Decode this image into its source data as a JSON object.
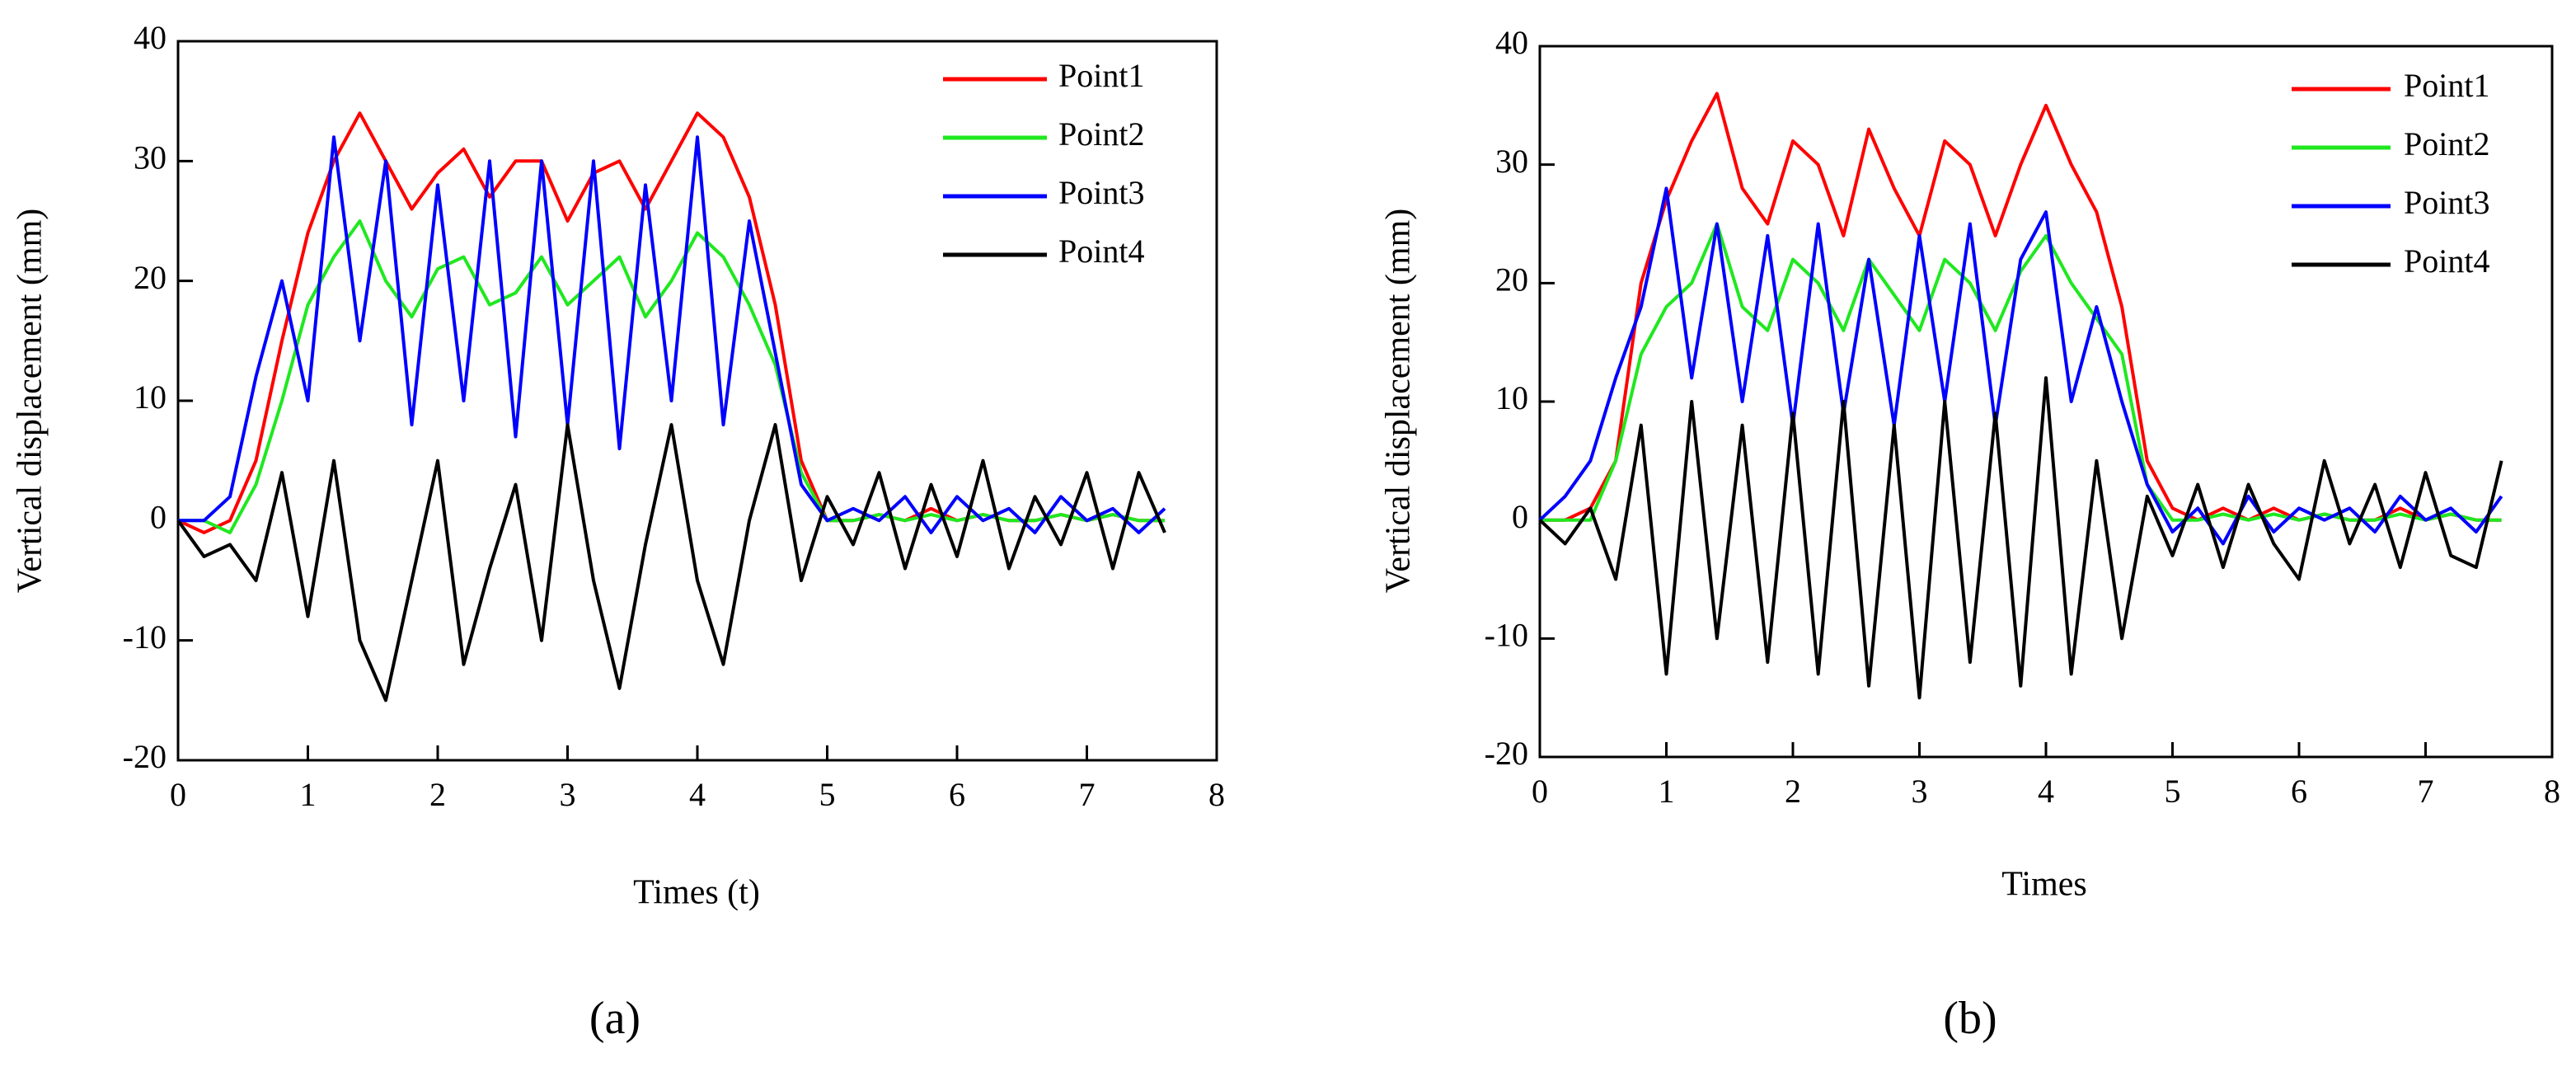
{
  "chart_data": [
    {
      "type": "line",
      "label": "(a)",
      "xlabel": "Times (t)",
      "ylabel": "Vertical displacement (mm)",
      "x": [
        0,
        0.2,
        0.4,
        0.6,
        0.8,
        1.0,
        1.2,
        1.4,
        1.6,
        1.8,
        2.0,
        2.2,
        2.4,
        2.6,
        2.8,
        3.0,
        3.2,
        3.4,
        3.6,
        3.8,
        4.0,
        4.2,
        4.4,
        4.6,
        4.8,
        5.0,
        5.2,
        5.4,
        5.6,
        5.8,
        6.0,
        6.2,
        6.4,
        6.6,
        6.8,
        7.0,
        7.2,
        7.4,
        7.6
      ],
      "xlim": [
        0,
        8
      ],
      "xticks": [
        0,
        1,
        2,
        3,
        4,
        5,
        6,
        7,
        8
      ],
      "ylim": [
        -20,
        40
      ],
      "yticks": [
        -20,
        -10,
        0,
        10,
        20,
        30,
        40
      ],
      "legend": "upper right",
      "series": [
        {
          "name": "Point1",
          "color": "#ff0000",
          "values": [
            0,
            -1,
            0,
            5,
            15,
            24,
            30,
            34,
            30,
            26,
            29,
            31,
            27,
            30,
            30,
            25,
            29,
            30,
            26,
            30,
            34,
            32,
            27,
            18,
            5,
            0,
            0,
            0.5,
            0,
            1,
            0,
            0.5,
            0,
            0,
            0.5,
            0,
            0.5,
            0,
            0
          ]
        },
        {
          "name": "Point2",
          "color": "#1fe81f",
          "values": [
            0,
            0,
            -1,
            3,
            10,
            18,
            22,
            25,
            20,
            17,
            21,
            22,
            18,
            19,
            22,
            18,
            20,
            22,
            17,
            20,
            24,
            22,
            18,
            13,
            4,
            0,
            0,
            0.5,
            0,
            0.5,
            0,
            0.5,
            0,
            0,
            0.5,
            0,
            0.5,
            0,
            0
          ]
        },
        {
          "name": "Point3",
          "color": "#0000ff",
          "values": [
            0,
            0,
            2,
            12,
            20,
            10,
            32,
            15,
            30,
            8,
            28,
            10,
            30,
            7,
            30,
            8,
            30,
            6,
            28,
            10,
            32,
            8,
            25,
            14,
            3,
            0,
            1,
            0,
            2,
            -1,
            2,
            0,
            1,
            -1,
            2,
            0,
            1,
            -1,
            1
          ]
        },
        {
          "name": "Point4",
          "color": "#000000",
          "values": [
            0,
            -3,
            -2,
            -5,
            4,
            -8,
            5,
            -10,
            -15,
            -5,
            5,
            -12,
            -4,
            3,
            -10,
            8,
            -5,
            -14,
            -2,
            8,
            -5,
            -12,
            0,
            8,
            -5,
            2,
            -2,
            4,
            -4,
            3,
            -3,
            5,
            -4,
            2,
            -2,
            4,
            -4,
            4,
            -1
          ]
        }
      ]
    },
    {
      "type": "line",
      "label": "(b)",
      "xlabel": "Times",
      "ylabel": "Vertical displacement (mm)",
      "x": [
        0,
        0.2,
        0.4,
        0.6,
        0.8,
        1.0,
        1.2,
        1.4,
        1.6,
        1.8,
        2.0,
        2.2,
        2.4,
        2.6,
        2.8,
        3.0,
        3.2,
        3.4,
        3.6,
        3.8,
        4.0,
        4.2,
        4.4,
        4.6,
        4.8,
        5.0,
        5.2,
        5.4,
        5.6,
        5.8,
        6.0,
        6.2,
        6.4,
        6.6,
        6.8,
        7.0,
        7.2,
        7.4,
        7.6
      ],
      "xlim": [
        0,
        8
      ],
      "xticks": [
        0,
        1,
        2,
        3,
        4,
        5,
        6,
        7,
        8
      ],
      "ylim": [
        -20,
        40
      ],
      "yticks": [
        -20,
        -10,
        0,
        10,
        20,
        30,
        40
      ],
      "legend": "upper right",
      "series": [
        {
          "name": "Point1",
          "color": "#ff0000",
          "values": [
            0,
            0,
            1,
            5,
            20,
            27,
            32,
            36,
            28,
            25,
            32,
            30,
            24,
            33,
            28,
            24,
            32,
            30,
            24,
            30,
            35,
            30,
            26,
            18,
            5,
            1,
            0,
            1,
            0,
            1,
            0,
            0.5,
            0,
            0,
            1,
            0,
            0.5,
            0,
            0
          ]
        },
        {
          "name": "Point2",
          "color": "#1fe81f",
          "values": [
            0,
            0,
            0,
            5,
            14,
            18,
            20,
            25,
            18,
            16,
            22,
            20,
            16,
            22,
            19,
            16,
            22,
            20,
            16,
            21,
            24,
            20,
            17,
            14,
            3,
            0,
            0,
            0.5,
            0,
            0.5,
            0,
            0.5,
            0,
            0,
            0.5,
            0,
            0.5,
            0,
            0
          ]
        },
        {
          "name": "Point3",
          "color": "#0000ff",
          "values": [
            0,
            2,
            5,
            12,
            18,
            28,
            12,
            25,
            10,
            24,
            8,
            25,
            9,
            22,
            8,
            24,
            10,
            25,
            8,
            22,
            26,
            10,
            18,
            10,
            3,
            -1,
            1,
            -2,
            2,
            -1,
            1,
            0,
            1,
            -1,
            2,
            0,
            1,
            -1,
            2
          ]
        },
        {
          "name": "Point4",
          "color": "#000000",
          "values": [
            0,
            -2,
            1,
            -5,
            8,
            -13,
            10,
            -10,
            8,
            -12,
            9,
            -13,
            10,
            -14,
            8,
            -15,
            10,
            -12,
            9,
            -14,
            12,
            -13,
            5,
            -10,
            2,
            -3,
            3,
            -4,
            3,
            -2,
            -5,
            5,
            -2,
            3,
            -4,
            4,
            -3,
            -4,
            5
          ]
        }
      ]
    }
  ]
}
